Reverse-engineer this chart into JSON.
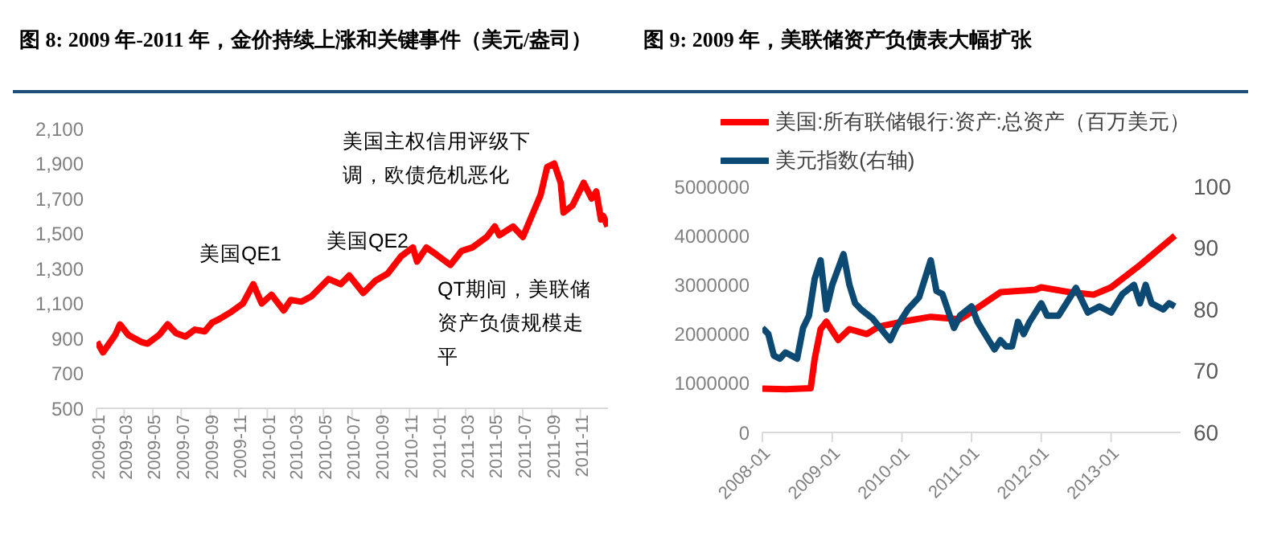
{
  "chart_data": [
    {
      "type": "line",
      "title": "图 8: 2009 年-2011 年，金价持续上涨和关键事件（美元/盎司）",
      "marker": "none",
      "xlim": [
        "2009-01-01",
        "2011-12-30"
      ],
      "xticks": [
        "2009-01",
        "2009-03",
        "2009-05",
        "2009-07",
        "2009-09",
        "2009-11",
        "2010-01",
        "2010-03",
        "2010-05",
        "2010-07",
        "2010-09",
        "2010-11",
        "2011-01",
        "2011-03",
        "2011-05",
        "2011-07",
        "2011-09",
        "2011-11"
      ],
      "ylim": [
        500,
        2100
      ],
      "yticks": [
        500,
        700,
        900,
        {
          "value": 1100,
          "label": "1,100"
        },
        {
          "value": 1300,
          "label": "1,300"
        },
        {
          "value": 1500,
          "label": "1,500"
        },
        {
          "value": 1700,
          "label": "1,700"
        },
        {
          "value": 1900,
          "label": "1,900"
        },
        {
          "value": 2100,
          "label": "2,100"
        }
      ],
      "annotations": [
        "美国主权信用评级下调，欧债危机恶化",
        "美国QE1",
        "美国QE2",
        "QT期间，美联储资产负债规模走平"
      ],
      "series": [
        {
          "color": "#ff0000",
          "x": [
            "2009-01-02",
            "2009-01-15",
            "2009-02-10",
            "2009-02-20",
            "2009-03-10",
            "2009-04-06",
            "2009-04-20",
            "2009-05-15",
            "2009-06-02",
            "2009-06-20",
            "2009-07-10",
            "2009-07-30",
            "2009-08-20",
            "2009-09-05",
            "2009-09-20",
            "2009-10-15",
            "2009-11-10",
            "2009-12-02",
            "2009-12-20",
            "2010-01-10",
            "2010-02-05",
            "2010-02-20",
            "2010-03-15",
            "2010-04-05",
            "2010-05-12",
            "2010-06-07",
            "2010-06-25",
            "2010-07-25",
            "2010-08-20",
            "2010-09-15",
            "2010-10-14",
            "2010-11-08",
            "2010-11-17",
            "2010-12-07",
            "2010-12-28",
            "2011-01-27",
            "2011-02-20",
            "2011-03-15",
            "2011-04-15",
            "2011-05-02",
            "2011-05-12",
            "2011-06-10",
            "2011-07-01",
            "2011-07-20",
            "2011-08-08",
            "2011-08-22",
            "2011-09-06",
            "2011-09-20",
            "2011-09-26",
            "2011-10-15",
            "2011-11-08",
            "2011-11-25",
            "2011-12-05",
            "2011-12-15",
            "2011-12-20",
            "2011-12-29"
          ],
          "values": [
            880,
            820,
            920,
            980,
            920,
            880,
            870,
            920,
            980,
            930,
            910,
            950,
            940,
            990,
            1010,
            1050,
            1100,
            1210,
            1100,
            1150,
            1060,
            1120,
            1110,
            1140,
            1240,
            1210,
            1260,
            1160,
            1230,
            1270,
            1370,
            1420,
            1340,
            1420,
            1380,
            1320,
            1400,
            1420,
            1480,
            1540,
            1490,
            1540,
            1480,
            1600,
            1720,
            1880,
            1900,
            1790,
            1620,
            1660,
            1790,
            1700,
            1740,
            1580,
            1600,
            1540
          ]
        }
      ]
    },
    {
      "type": "line",
      "title": "图 9: 2009 年，美联储资产负债表大幅扩张",
      "marker": "none",
      "legend": "top",
      "xlim": [
        "2008-01-01",
        "2013-12-31"
      ],
      "xticks": [
        "2008-01",
        "2009-01",
        "2010-01",
        "2011-01",
        "2012-01",
        "2013-01"
      ],
      "ylim": [
        0,
        5000000
      ],
      "yticks": [
        0,
        1000000,
        2000000,
        3000000,
        4000000,
        5000000
      ],
      "y2lim": [
        60,
        100
      ],
      "y2ticks": [
        60,
        70,
        80,
        90,
        100
      ],
      "series": [
        {
          "name": "美国:所有联储银行:资产:总资产（百万美元）",
          "color": "#ff0000",
          "x": [
            "2008-01",
            "2008-05",
            "2008-09-10",
            "2008-10",
            "2008-11",
            "2008-12",
            "2009-02",
            "2009-04",
            "2009-07",
            "2009-09",
            "2010-01",
            "2010-06",
            "2010-11",
            "2011-01",
            "2011-06",
            "2011-12",
            "2012-01",
            "2012-06",
            "2012-10",
            "2013-01",
            "2013-06",
            "2013-12"
          ],
          "values": [
            890000,
            880000,
            900000,
            1500000,
            2100000,
            2250000,
            1880000,
            2100000,
            2000000,
            2150000,
            2250000,
            2350000,
            2300000,
            2450000,
            2850000,
            2900000,
            2950000,
            2850000,
            2800000,
            2950000,
            3400000,
            4000000
          ]
        },
        {
          "name": "美元指数(右轴)",
          "color": "#0d4a73",
          "axis": "y2",
          "x": [
            "2008-01",
            "2008-02",
            "2008-03",
            "2008-04",
            "2008-05",
            "2008-06",
            "2008-07",
            "2008-08",
            "2008-09",
            "2008-10",
            "2008-11",
            "2008-12",
            "2009-01",
            "2009-03",
            "2009-04",
            "2009-05",
            "2009-06",
            "2009-08",
            "2009-11",
            "2009-12",
            "2010-02",
            "2010-04",
            "2010-06",
            "2010-07",
            "2010-08",
            "2010-10",
            "2010-11",
            "2011-01",
            "2011-02",
            "2011-04",
            "2011-05",
            "2011-06",
            "2011-07",
            "2011-08",
            "2011-09",
            "2011-10",
            "2011-11",
            "2012-01",
            "2012-02",
            "2012-04",
            "2012-06",
            "2012-07",
            "2012-09",
            "2012-11",
            "2013-01",
            "2013-03",
            "2013-05",
            "2013-06",
            "2013-07",
            "2013-08",
            "2013-10",
            "2013-11",
            "2013-12"
          ],
          "values": [
            77,
            76,
            72.5,
            72,
            73,
            72.5,
            72,
            77,
            79,
            85,
            88,
            80,
            84,
            89,
            84,
            81,
            80,
            78.5,
            75,
            77,
            80,
            82,
            88,
            83,
            82.5,
            77,
            79,
            80.5,
            78,
            75,
            73.5,
            75,
            74,
            74,
            78,
            76,
            78,
            81,
            79,
            79,
            82,
            83.5,
            79.5,
            80.5,
            79.5,
            82.5,
            84,
            81,
            84,
            81,
            80,
            81,
            80.5
          ]
        }
      ]
    }
  ]
}
